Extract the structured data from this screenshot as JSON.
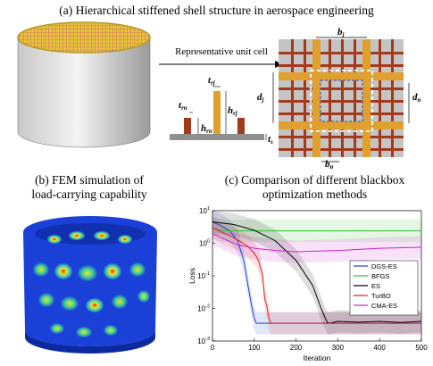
{
  "captions": {
    "a": "(a) Hierarchical stiffened shell structure in aerospace engineering",
    "b_line1": "(b) FEM simulation of",
    "b_line2": "load-carrying capability",
    "c_line1": "(c) Comparison of different blackbox",
    "c_line2": "optimization methods"
  },
  "arrow_label": "Representative unit cell",
  "dimension_labels": {
    "t_rn": "t",
    "t_rn_sub": "rn",
    "t_rj": "t",
    "t_rj_sub": "rj",
    "h_rj": "h",
    "h_rj_sub": "rj",
    "h_rn": "h",
    "h_rn_sub": "rn",
    "t_s": "t",
    "t_s_sub": "s",
    "b_j": "b",
    "b_j_sub": "j",
    "d_j": "d",
    "d_j_sub": "j",
    "d_n": "d",
    "d_n_sub": "n",
    "b_n": "b",
    "b_n_sub": "n"
  },
  "colors": {
    "major_stiffener": "#e0a030",
    "minor_stiffener": "#a33a1c",
    "skin": "#c4c4c4",
    "unit_cell_outline": "#ffffff",
    "inner_cell_outline": "#4060c0"
  },
  "chart_data": {
    "type": "line",
    "xlabel": "Iteration",
    "ylabel": "Loss",
    "xlim": [
      0,
      500
    ],
    "ylim": [
      0.001,
      10
    ],
    "yscale": "log",
    "xticks": [
      "0",
      "100",
      "200",
      "300",
      "400",
      "500"
    ],
    "yticks": [
      "10^-3",
      "10^-2",
      "10^-1",
      "10^0",
      "10^1"
    ],
    "legend_position": "right",
    "series": [
      {
        "name": "DGS-ES",
        "color": "#1f3fd0",
        "x": [
          0,
          20,
          40,
          60,
          75,
          85,
          95,
          100,
          105,
          110,
          500
        ],
        "y": [
          4.5,
          3.5,
          2.5,
          1.2,
          0.3,
          0.05,
          0.01,
          0.005,
          0.0035,
          0.0035,
          0.0035
        ]
      },
      {
        "name": "BFGS",
        "color": "#30c030",
        "x": [
          0,
          10,
          20,
          40,
          500
        ],
        "y": [
          3.0,
          2.7,
          2.5,
          2.4,
          2.4
        ]
      },
      {
        "name": "ES",
        "color": "#000000",
        "x": [
          0,
          50,
          100,
          150,
          200,
          240,
          260,
          270,
          275,
          280,
          300,
          350,
          400,
          450,
          500
        ],
        "y": [
          4.5,
          3.8,
          2.5,
          1.2,
          0.3,
          0.05,
          0.01,
          0.005,
          0.0037,
          0.0035,
          0.004,
          0.0038,
          0.004,
          0.0037,
          0.004
        ]
      },
      {
        "name": "TurBO",
        "color": "#e02020",
        "x": [
          0,
          50,
          80,
          100,
          110,
          120,
          125,
          130,
          135,
          140,
          500
        ],
        "y": [
          3.0,
          1.5,
          0.9,
          0.5,
          0.3,
          0.1,
          0.02,
          0.012,
          0.005,
          0.0035,
          0.0035
        ]
      },
      {
        "name": "CMA-ES",
        "color": "#d020d0",
        "x": [
          0,
          30,
          60,
          100,
          150,
          200,
          300,
          400,
          500
        ],
        "y": [
          2.0,
          1.3,
          0.9,
          0.7,
          0.6,
          0.55,
          0.6,
          0.7,
          0.75
        ]
      }
    ]
  }
}
